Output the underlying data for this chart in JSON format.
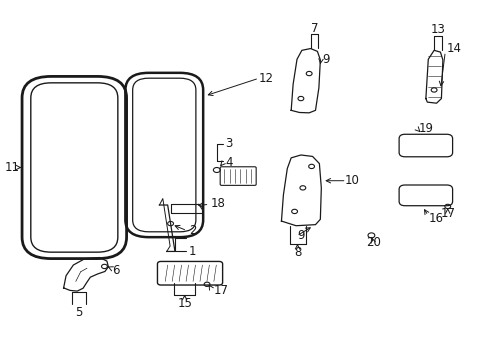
{
  "bg_color": "#ffffff",
  "line_color": "#1a1a1a",
  "font_size": 8.5,
  "figw": 4.89,
  "figh": 3.6,
  "dpi": 100
}
